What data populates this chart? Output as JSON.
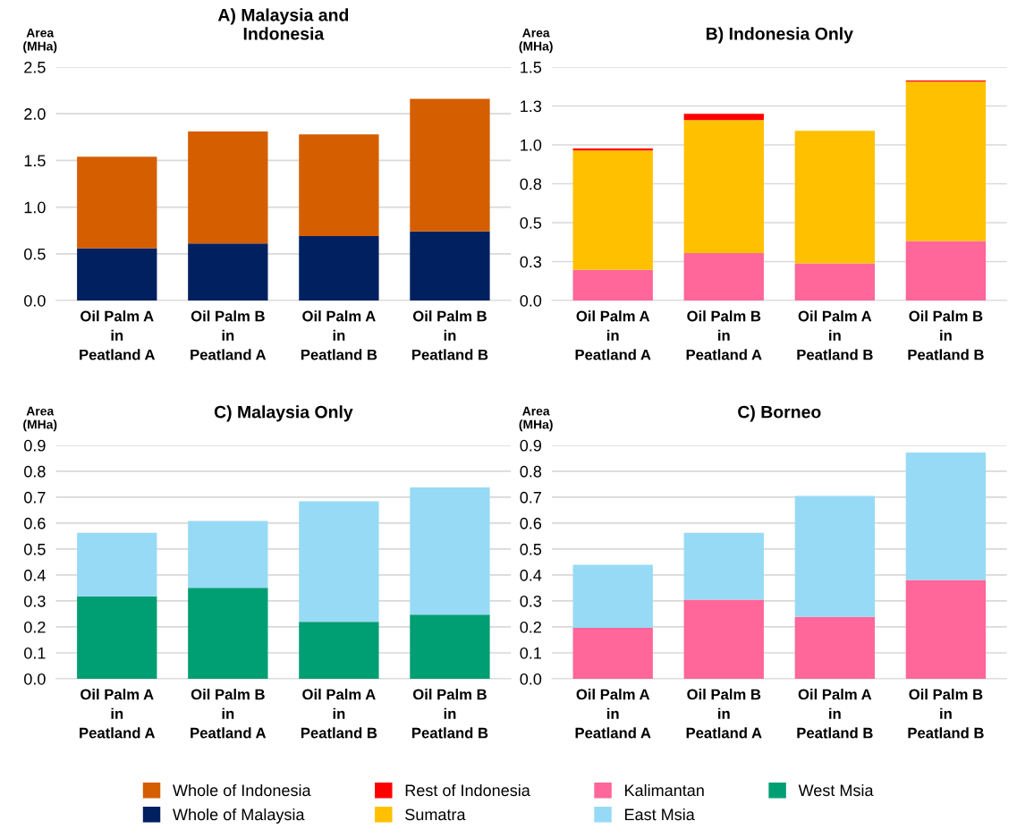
{
  "chart_data": [
    {
      "type": "bar",
      "stacked": true,
      "title": "A) Malaysia and\nIndonesia",
      "ylabel": "Area\n(MHa)",
      "categories": [
        "Oil Palm A\nin\nPeatland A",
        "Oil Palm B\nin\nPeatland A",
        "Oil Palm A\nin\nPeatland B",
        "Oil Palm B\nin\nPeatland B"
      ],
      "ylim": [
        0,
        2.5
      ],
      "yticks": [
        {
          "value": 0,
          "label": "0.0"
        },
        0.5,
        {
          "value": 1,
          "label": "1.0"
        },
        1.5,
        {
          "value": 2,
          "label": "2.0"
        },
        2.5
      ],
      "grid": "y",
      "legend": "bottom",
      "series": [
        {
          "name": "Whole of Malaysia",
          "color": "#002060",
          "values": [
            0.56,
            0.61,
            0.69,
            0.74
          ]
        },
        {
          "name": "Whole of Indonesia",
          "color": "#d55e00",
          "values": [
            0.98,
            1.2,
            1.09,
            1.42
          ]
        }
      ]
    },
    {
      "type": "bar",
      "stacked": true,
      "title": "B) Indonesia Only",
      "ylabel": "Area\n(MHa)",
      "categories": [
        "Oil Palm A\nin\nPeatland A",
        "Oil Palm B\nin\nPeatland A",
        "Oil Palm A\nin\nPeatland B",
        "Oil Palm B\nin\nPeatland B"
      ],
      "ylim": [
        0,
        1.5
      ],
      "yticks": [
        {
          "value": 0,
          "label": "0.0"
        },
        {
          "value": 0.25,
          "label": "0.3"
        },
        0.5,
        {
          "value": 0.75,
          "label": "0.8"
        },
        {
          "value": 1,
          "label": "1.0"
        },
        {
          "value": 1.25,
          "label": "1.3"
        },
        1.5
      ],
      "grid": "y",
      "legend": "bottom",
      "series": [
        {
          "name": "Kalimantan",
          "color": "#ff6699",
          "values": [
            0.197,
            0.305,
            0.238,
            0.382
          ]
        },
        {
          "name": "Sumatra",
          "color": "#ffc000",
          "values": [
            0.767,
            0.855,
            0.853,
            1.024
          ]
        },
        {
          "name": "Rest of Indonesia",
          "color": "#ff0000",
          "values": [
            0.013,
            0.04,
            0,
            0.007
          ]
        }
      ]
    },
    {
      "type": "bar",
      "stacked": true,
      "title": "C) Malaysia Only",
      "ylabel": "Area\n(MHa)",
      "categories": [
        "Oil Palm A\nin\nPeatland A",
        "Oil Palm B\nin\nPeatland A",
        "Oil Palm A\nin\nPeatland B",
        "Oil Palm B\nin\nPeatland B"
      ],
      "ylim": [
        0,
        0.9
      ],
      "yticks": [
        {
          "value": 0,
          "label": "0.0"
        },
        0.1,
        0.2,
        0.3,
        0.4,
        0.5,
        0.6,
        0.7,
        0.8,
        0.9
      ],
      "grid": "y",
      "legend": "bottom",
      "series": [
        {
          "name": "West Msia",
          "color": "#009e73",
          "values": [
            0.318,
            0.351,
            0.22,
            0.247
          ]
        },
        {
          "name": "East Msia",
          "color": "#97daf6",
          "values": [
            0.245,
            0.257,
            0.464,
            0.491
          ]
        }
      ]
    },
    {
      "type": "bar",
      "stacked": true,
      "title": "C) Borneo",
      "ylabel": "Area\n(MHa)",
      "categories": [
        "Oil Palm A\nin\nPeatland A",
        "Oil Palm B\nin\nPeatland A",
        "Oil Palm A\nin\nPeatland B",
        "Oil Palm B\nin\nPeatland B"
      ],
      "ylim": [
        0,
        0.9
      ],
      "yticks": [
        {
          "value": 0,
          "label": "0.0"
        },
        0.1,
        0.2,
        0.3,
        0.4,
        0.5,
        0.6,
        0.7,
        0.8,
        0.9
      ],
      "grid": "y",
      "series": [
        {
          "color": "#ff6699",
          "values": [
            0.196,
            0.305,
            0.239,
            0.381
          ]
        },
        {
          "color": "#97daf6",
          "values": [
            0.243,
            0.258,
            0.466,
            0.491
          ]
        }
      ]
    }
  ]
}
